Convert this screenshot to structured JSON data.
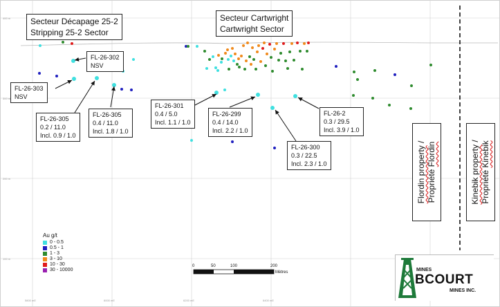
{
  "sectors": {
    "decapage": [
      "Secteur Décapage 25-2",
      "Stripping 25-2 Sector"
    ],
    "cartwright": [
      "Secteur Cartwright",
      "Cartwright Sector"
    ]
  },
  "holes": [
    {
      "id": "FL-26-302",
      "lines": [
        "FL-26-302",
        "NSV"
      ]
    },
    {
      "id": "FL-26-303",
      "lines": [
        "FL-26-303",
        "NSV"
      ]
    },
    {
      "id": "FL-26-305a",
      "lines": [
        "FL-26-305",
        "0.2 / 11.0",
        "Incl. 0.9 / 1.0"
      ]
    },
    {
      "id": "FL-26-305b",
      "lines": [
        "FL-26-305",
        "0.4 / 11.0",
        "Incl. 1.8 / 1.0"
      ]
    },
    {
      "id": "FL-26-301",
      "lines": [
        "FL-26-301",
        "0.4 / 5.0",
        "Incl. 1.1 / 1.0"
      ]
    },
    {
      "id": "FL-26-299",
      "lines": [
        "FL-26-299",
        "0.4 / 14.0",
        "Incl. 2.2 / 1.0"
      ]
    },
    {
      "id": "FL-26-300",
      "lines": [
        "FL-26-300",
        "0.3 / 22.5",
        "Incl. 2.3 / 1.0"
      ]
    },
    {
      "id": "FL-26-2",
      "lines": [
        "FL-26-2",
        "0.3 / 29.5",
        "Incl. 3.9 / 1.0"
      ]
    }
  ],
  "properties": {
    "flordin": {
      "l1a": "Flordin property",
      "l1b": " /",
      "l2a": "Propriété ",
      "l2b": "Flordin"
    },
    "kinebik": {
      "l1a": "Kinebik property",
      "l1b": " /",
      "l2a": "Propriété ",
      "l2b": "Kinebik"
    }
  },
  "legend": {
    "title": "Au g/t",
    "ranges": [
      {
        "label": "0 - 0.5",
        "color": "#3fe0e0"
      },
      {
        "label": "0.5 - 1",
        "color": "#1f1fbf"
      },
      {
        "label": "1 - 3",
        "color": "#2e8b2e"
      },
      {
        "label": "3 - 10",
        "color": "#f08a1c"
      },
      {
        "label": "10 - 30",
        "color": "#e01b1b"
      },
      {
        "label": "30 - 10000",
        "color": "#9a1fb0"
      }
    ]
  },
  "scale_bar": {
    "ticks": [
      "0",
      "50",
      "100",
      "200"
    ],
    "unit": "Mètres"
  },
  "logo": {
    "top": "MINES",
    "brand": "BCOURT",
    "bottom": "MINES INC."
  },
  "axis_labels": {
    "y": [
      "400 m",
      "300 m",
      "200 m",
      "100 m"
    ],
    "x": [
      "5800 mE",
      "6000 mE",
      "6200 mE",
      "6400 mE"
    ]
  }
}
